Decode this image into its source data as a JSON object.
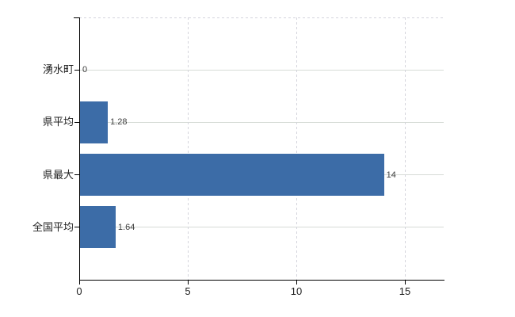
{
  "chart_data": {
    "type": "bar",
    "orientation": "horizontal",
    "title": "",
    "xlabel": "",
    "ylabel": "",
    "categories": [
      "湧水町",
      "県平均",
      "県最大",
      "全国平均"
    ],
    "values": [
      0,
      1.28,
      14,
      1.64
    ],
    "value_labels": [
      "0",
      "1.28",
      "14",
      "1.64"
    ],
    "xticks": [
      0,
      5,
      10,
      15
    ],
    "xtick_labels": [
      "0",
      "5",
      "10",
      "15"
    ],
    "xlim": [
      0,
      16.8
    ],
    "grid": true,
    "legend": false,
    "colors": {
      "bar": "#3c6ca7",
      "h_gridline": "#d6dbd6",
      "v_gridline": "#d4d4dc",
      "plot_top_border": "#d4d4dc",
      "axis": "#000000",
      "category_label": "#1f1f1f",
      "tick_label": "#1f1f1f",
      "value_label": "#3f3f3f"
    }
  }
}
